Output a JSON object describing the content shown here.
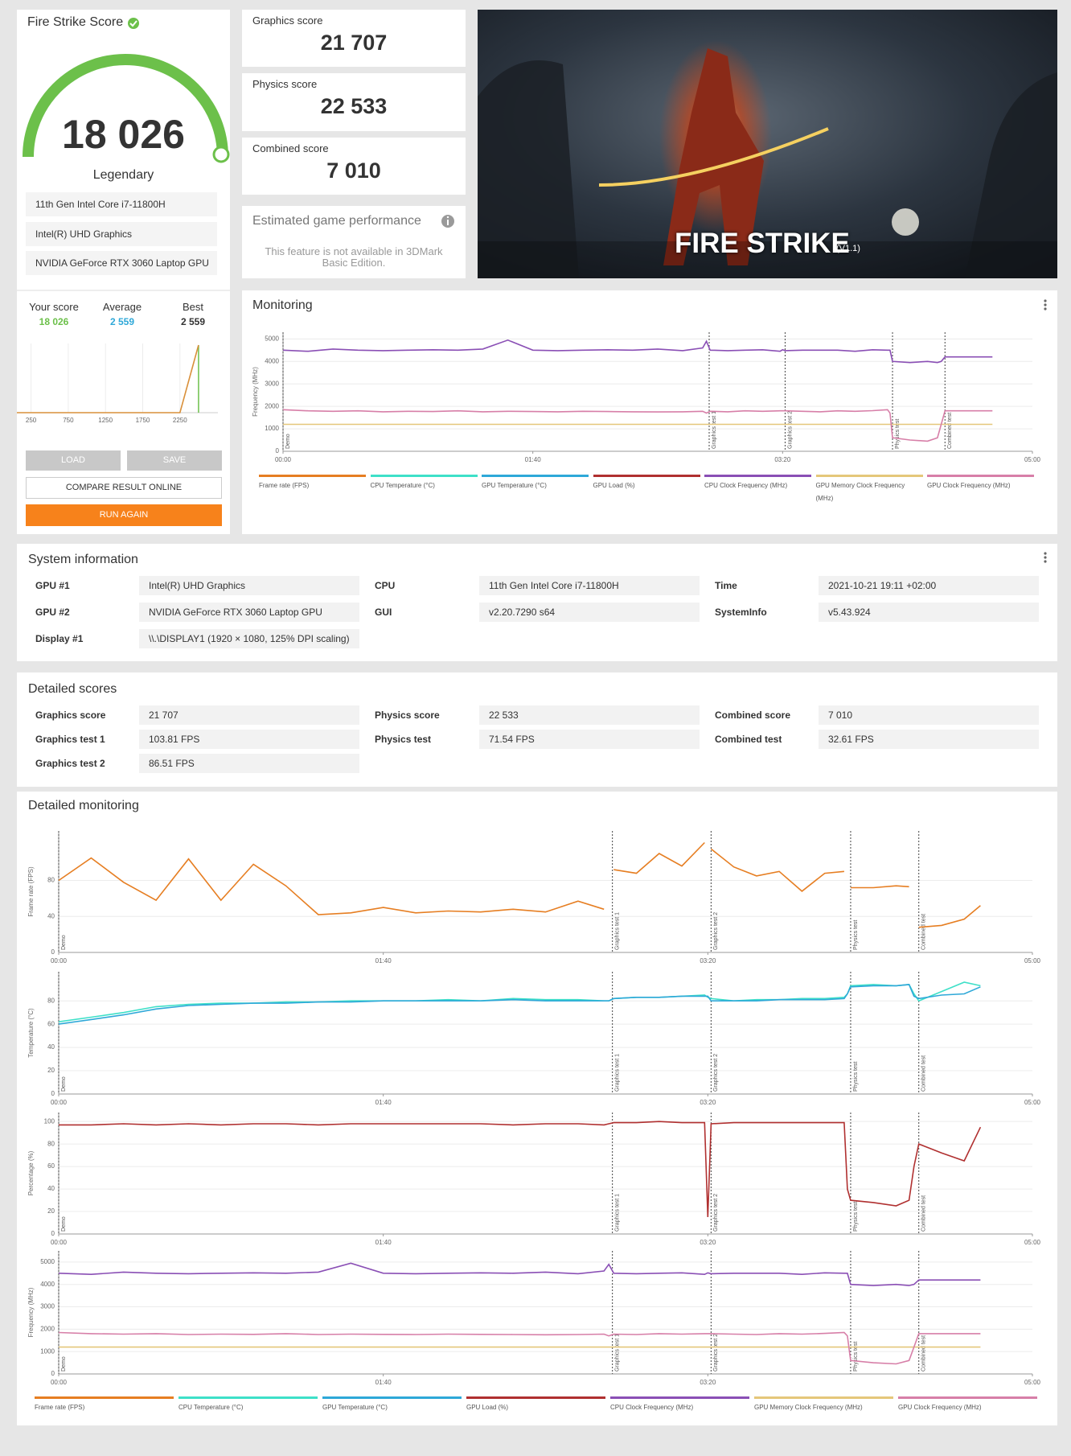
{
  "score_card": {
    "title": "Fire Strike Score",
    "score": "18 026",
    "rating": "Legendary",
    "hardware": [
      "11th Gen Intel Core i7-11800H",
      "Intel(R) UHD Graphics",
      "NVIDIA GeForce RTX 3060 Laptop GPU"
    ],
    "comparison": [
      {
        "label": "Your score",
        "value": "18 026",
        "color": "#6cc04a"
      },
      {
        "label": "Average",
        "value": "2 559",
        "color": "#2ea8d8"
      },
      {
        "label": "Best",
        "value": "2 559",
        "color": "#333333"
      }
    ],
    "buttons": {
      "load": "LOAD",
      "save": "SAVE",
      "compare": "COMPARE RESULT ONLINE",
      "run_again": "RUN AGAIN"
    }
  },
  "scores": [
    {
      "label": "Graphics score",
      "value": "21 707"
    },
    {
      "label": "Physics score",
      "value": "22 533"
    },
    {
      "label": "Combined score",
      "value": "7 010"
    }
  ],
  "game_performance": {
    "title": "Estimated game performance",
    "message": "This feature is not available in 3DMark Basic Edition."
  },
  "banner": {
    "title": "FIRE STRIKE",
    "version": "(V1.1)"
  },
  "system_information": {
    "title": "System information",
    "columns": [
      [
        {
          "label": "GPU #1",
          "value": "Intel(R) UHD Graphics"
        },
        {
          "label": "GPU #2",
          "value": "NVIDIA GeForce RTX 3060 Laptop GPU"
        },
        {
          "label": "Display #1",
          "value": "\\\\.\\DISPLAY1 (1920 × 1080, 125% DPI scaling)"
        }
      ],
      [
        {
          "label": "CPU",
          "value": "11th Gen Intel Core i7-11800H"
        },
        {
          "label": "GUI",
          "value": "v2.20.7290 s64"
        }
      ],
      [
        {
          "label": "Time",
          "value": "2021-10-21 19:11 +02:00"
        },
        {
          "label": "SystemInfo",
          "value": "v5.43.924"
        }
      ]
    ]
  },
  "detailed_scores": {
    "title": "Detailed scores",
    "columns": [
      [
        {
          "label": "Graphics score",
          "value": "21 707"
        },
        {
          "label": "Graphics test 1",
          "value": "103.81 FPS"
        },
        {
          "label": "Graphics test 2",
          "value": "86.51 FPS"
        }
      ],
      [
        {
          "label": "Physics score",
          "value": "22 533"
        },
        {
          "label": "Physics test",
          "value": "71.54 FPS"
        }
      ],
      [
        {
          "label": "Combined score",
          "value": "7 010"
        },
        {
          "label": "Combined test",
          "value": "32.61 FPS"
        }
      ]
    ]
  },
  "chart_data": [
    {
      "type": "line",
      "x": [
        60,
        2250,
        2500
      ],
      "values": [
        0,
        0,
        100
      ],
      "color": "#d9903a",
      "xlim": [
        60,
        2760
      ],
      "ylim": [
        0,
        100
      ],
      "xticks": [
        250,
        750,
        1250,
        1750,
        2250
      ],
      "marker_x": 2500,
      "marker_color": "#6cc04a"
    },
    {
      "type": "line",
      "title": "Monitoring",
      "ylabel": "Frequency (MHz)",
      "x": [
        0,
        10,
        20,
        30,
        40,
        50,
        60,
        70,
        80,
        90,
        100,
        110,
        120,
        130,
        140,
        150,
        160,
        168,
        169.5,
        171,
        178,
        185,
        192,
        199,
        200,
        201,
        208,
        215,
        222,
        229,
        236,
        242,
        243,
        244,
        251,
        258,
        262,
        263.5,
        265,
        272,
        279,
        284
      ],
      "xlim": [
        0,
        300
      ],
      "ylim": [
        0,
        5300
      ],
      "xticks": [
        {
          "value": 0,
          "label": "00:00"
        },
        {
          "value": 100,
          "label": "01:40"
        },
        {
          "value": 200,
          "label": "03:20"
        },
        {
          "value": 300,
          "label": "05:00"
        }
      ],
      "yticks": [
        0,
        1000,
        2000,
        3000,
        4000,
        5000
      ],
      "markers": [
        {
          "value": 0,
          "label": "Demo"
        },
        {
          "value": 170.6,
          "label": "Graphics test 1"
        },
        {
          "value": 201,
          "label": "Graphics test 2"
        },
        {
          "value": 244,
          "label": "Physics test"
        },
        {
          "value": 265,
          "label": "Combined test"
        }
      ],
      "series": [
        {
          "name": "Frame rate (FPS)",
          "color": "#e67e22"
        },
        {
          "name": "CPU Temperature (°C)",
          "color": "#3ee0c8"
        },
        {
          "name": "GPU Temperature (°C)",
          "color": "#2ea8d8"
        },
        {
          "name": "GPU Load (%)",
          "color": "#b03030"
        },
        {
          "name": "CPU Clock Frequency (MHz)",
          "color": "#8a4fb5",
          "values": [
            4500,
            4450,
            4550,
            4500,
            4480,
            4500,
            4520,
            4500,
            4550,
            4950,
            4500,
            4480,
            4500,
            4520,
            4500,
            4550,
            4480,
            4600,
            4900,
            4500,
            4480,
            4500,
            4520,
            4450,
            4520,
            4480,
            4500,
            4500,
            4500,
            4450,
            4520,
            4500,
            4500,
            4000,
            3950,
            4000,
            3950,
            4000,
            4200,
            4200,
            4200,
            4200
          ]
        },
        {
          "name": "GPU Memory Clock Frequency (MHz)",
          "color": "#e5c77a",
          "values": [
            1200,
            1200,
            1200,
            1200,
            1200,
            1200,
            1200,
            1200,
            1200,
            1200,
            1200,
            1200,
            1200,
            1200,
            1200,
            1200,
            1200,
            1200,
            1200,
            1200,
            1200,
            1200,
            1200,
            1200,
            1200,
            1200,
            1200,
            1200,
            1200,
            1200,
            1200,
            1200,
            1200,
            1200,
            1200,
            1200,
            1200,
            1200,
            1200,
            1200,
            1200,
            1200
          ]
        },
        {
          "name": "GPU Clock Frequency (MHz)",
          "color": "#d77fa8",
          "values": [
            1850,
            1800,
            1780,
            1800,
            1760,
            1780,
            1770,
            1800,
            1760,
            1780,
            1770,
            1760,
            1780,
            1770,
            1760,
            1750,
            1760,
            1780,
            1700,
            1780,
            1760,
            1800,
            1780,
            1800,
            1800,
            1800,
            1780,
            1760,
            1800,
            1780,
            1810,
            1850,
            1700,
            600,
            500,
            450,
            600,
            1200,
            1800,
            1800,
            1800,
            1800
          ]
        }
      ]
    },
    {
      "type": "line",
      "title": "Detailed monitoring",
      "x": [
        0,
        10,
        20,
        30,
        40,
        50,
        60,
        70,
        80,
        90,
        100,
        110,
        120,
        130,
        140,
        150,
        160,
        168,
        169.5,
        171,
        178,
        185,
        192,
        199,
        200,
        201,
        208,
        215,
        222,
        229,
        236,
        242,
        243,
        244,
        251,
        258,
        262,
        263.5,
        265,
        272,
        279,
        284
      ],
      "xlim": [
        0,
        300
      ],
      "xticks": [
        {
          "value": 0,
          "label": "00:00"
        },
        {
          "value": 100,
          "label": "01:40"
        },
        {
          "value": 200,
          "label": "03:20"
        },
        {
          "value": 300,
          "label": "05:00"
        }
      ],
      "markers": [
        {
          "value": 0,
          "label": "Demo"
        },
        {
          "value": 170.6,
          "label": "Graphics test 1"
        },
        {
          "value": 201,
          "label": "Graphics test 2"
        },
        {
          "value": 244,
          "label": "Physics test"
        },
        {
          "value": 265,
          "label": "Combined test"
        }
      ],
      "panels": [
        {
          "ylabel": "Frame rate (FPS)",
          "ylim": [
            0,
            135
          ],
          "yticks": [
            0,
            40,
            80
          ]
        },
        {
          "ylabel": "Temperature (°C)",
          "ylim": [
            0,
            105
          ],
          "yticks": [
            0,
            20,
            40,
            60,
            80
          ]
        },
        {
          "ylabel": "Percentage (%)",
          "ylim": [
            0,
            108
          ],
          "yticks": [
            0,
            20,
            40,
            60,
            80,
            100
          ]
        },
        {
          "ylabel": "Frequency (MHz)",
          "ylim": [
            0,
            5500
          ],
          "yticks": [
            0,
            1000,
            2000,
            3000,
            4000,
            5000
          ]
        }
      ],
      "series": [
        {
          "name": "Frame rate (FPS)",
          "color": "#e67e22",
          "panel": 0,
          "values": [
            80,
            105,
            78,
            58,
            104,
            58,
            98,
            74,
            42,
            44,
            50,
            44,
            46,
            45,
            48,
            45,
            57,
            48,
            null,
            92,
            88,
            110,
            96,
            122,
            null,
            115,
            95,
            85,
            90,
            68,
            88,
            90,
            null,
            72,
            72,
            74,
            73,
            null,
            28,
            30,
            37,
            52
          ]
        },
        {
          "name": "CPU Temperature (°C)",
          "color": "#3ee0c8",
          "panel": 1,
          "values": [
            62,
            66,
            70,
            75,
            77,
            78,
            78,
            79,
            79,
            80,
            80,
            80,
            81,
            80,
            82,
            81,
            81,
            80,
            80,
            82,
            83,
            83,
            84,
            85,
            83,
            82,
            80,
            81,
            81,
            82,
            82,
            83,
            86,
            93,
            94,
            93,
            94,
            86,
            80,
            88,
            96,
            93
          ]
        },
        {
          "name": "GPU Temperature (°C)",
          "color": "#2ea8d8",
          "panel": 1,
          "values": [
            60,
            64,
            68,
            73,
            76,
            77,
            78,
            78,
            79,
            79,
            80,
            80,
            80,
            80,
            81,
            80,
            80,
            80,
            80,
            82,
            83,
            83,
            84,
            84,
            84,
            80,
            80,
            80,
            81,
            81,
            81,
            82,
            86,
            92,
            93,
            93,
            94,
            84,
            82,
            85,
            86,
            92
          ]
        },
        {
          "name": "GPU Load (%)",
          "color": "#b03030",
          "panel": 2,
          "values": [
            97,
            97,
            98,
            97,
            98,
            97,
            98,
            98,
            97,
            98,
            98,
            98,
            98,
            98,
            97,
            98,
            98,
            97,
            98,
            99,
            99,
            100,
            99,
            99,
            15,
            98,
            99,
            99,
            99,
            99,
            99,
            99,
            40,
            30,
            28,
            25,
            30,
            60,
            80,
            72,
            65,
            95
          ]
        },
        {
          "name": "CPU Clock Frequency (MHz)",
          "color": "#8a4fb5",
          "panel": 3,
          "values": [
            4500,
            4450,
            4550,
            4500,
            4480,
            4500,
            4520,
            4500,
            4550,
            4950,
            4500,
            4480,
            4500,
            4520,
            4500,
            4550,
            4480,
            4600,
            4900,
            4500,
            4480,
            4500,
            4520,
            4450,
            4520,
            4480,
            4500,
            4500,
            4500,
            4450,
            4520,
            4500,
            4500,
            4000,
            3950,
            4000,
            3950,
            4000,
            4200,
            4200,
            4200,
            4200
          ]
        },
        {
          "name": "GPU Memory Clock Frequency (MHz)",
          "color": "#e5c77a",
          "panel": 3,
          "values": [
            1200,
            1200,
            1200,
            1200,
            1200,
            1200,
            1200,
            1200,
            1200,
            1200,
            1200,
            1200,
            1200,
            1200,
            1200,
            1200,
            1200,
            1200,
            1200,
            1200,
            1200,
            1200,
            1200,
            1200,
            1200,
            1200,
            1200,
            1200,
            1200,
            1200,
            1200,
            1200,
            1200,
            1200,
            1200,
            1200,
            1200,
            1200,
            1200,
            1200,
            1200,
            1200
          ]
        },
        {
          "name": "GPU Clock Frequency (MHz)",
          "color": "#d77fa8",
          "panel": 3,
          "values": [
            1850,
            1800,
            1780,
            1800,
            1760,
            1780,
            1770,
            1800,
            1760,
            1780,
            1770,
            1760,
            1780,
            1770,
            1760,
            1750,
            1760,
            1780,
            1700,
            1780,
            1760,
            1800,
            1780,
            1800,
            1800,
            1800,
            1780,
            1760,
            1800,
            1780,
            1810,
            1850,
            1700,
            600,
            500,
            450,
            600,
            1200,
            1800,
            1800,
            1800,
            1800
          ]
        }
      ]
    }
  ]
}
